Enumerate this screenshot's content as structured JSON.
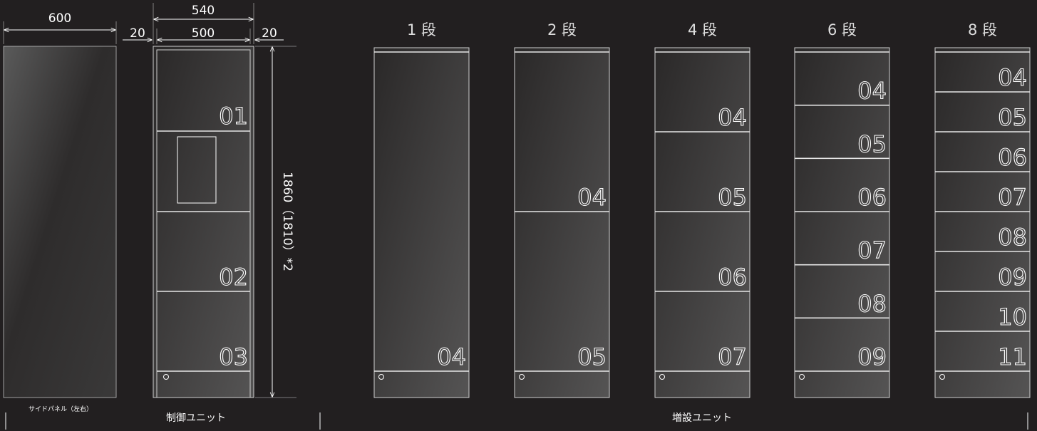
{
  "dimensions": {
    "side_panel_width": "600",
    "unit_outer_width": "540",
    "unit_inner_width": "500",
    "margin_left": "20",
    "margin_right": "20",
    "height": "1860（1810）*2"
  },
  "side_panel": {
    "caption": "サイドパネル（左右）"
  },
  "control_unit": {
    "caption": "制御ユニット",
    "slots": [
      "01",
      "02",
      "03"
    ]
  },
  "extension_units": {
    "caption": "増設ユニット",
    "units": [
      {
        "header": "1 段",
        "slots": [
          "04"
        ]
      },
      {
        "header": "2 段",
        "slots": [
          "04",
          "05"
        ]
      },
      {
        "header": "4 段",
        "slots": [
          "04",
          "05",
          "06",
          "07"
        ]
      },
      {
        "header": "6 段",
        "slots": [
          "04",
          "05",
          "06",
          "07",
          "08",
          "09"
        ]
      },
      {
        "header": "8 段",
        "slots": [
          "04",
          "05",
          "06",
          "07",
          "08",
          "09",
          "10",
          "11"
        ]
      }
    ]
  },
  "colors": {
    "background": "#221f20",
    "line": "#ffffff"
  }
}
